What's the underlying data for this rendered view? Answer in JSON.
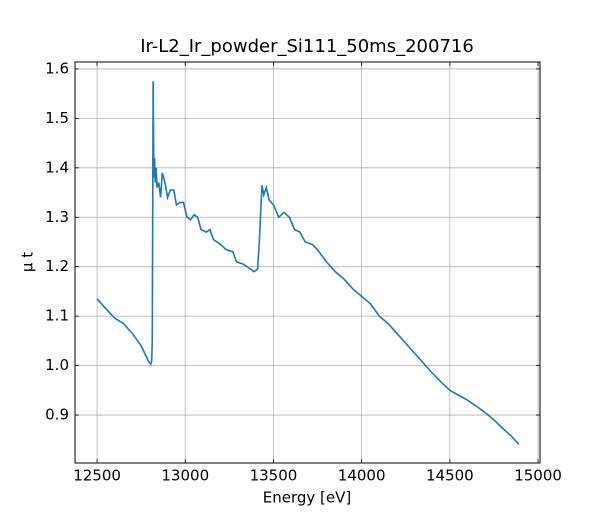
{
  "chart_data": {
    "type": "line",
    "title": "Ir-L2_Ir_powder_Si111_50ms_200716",
    "xlabel": "Energy [eV]",
    "ylabel": "μ t",
    "x": [
      12500,
      12550,
      12600,
      12650,
      12700,
      12750,
      12790,
      12805,
      12810,
      12813,
      12815,
      12818,
      12822,
      12826,
      12830,
      12835,
      12840,
      12850,
      12860,
      12870,
      12885,
      12900,
      12915,
      12935,
      12950,
      12970,
      12990,
      13010,
      13030,
      13050,
      13070,
      13090,
      13120,
      13140,
      13160,
      13200,
      13230,
      13270,
      13290,
      13330,
      13370,
      13390,
      13410,
      13420,
      13435,
      13445,
      13460,
      13475,
      13500,
      13530,
      13560,
      13590,
      13620,
      13650,
      13680,
      13720,
      13750,
      13800,
      13850,
      13900,
      13950,
      14000,
      14050,
      14100,
      14150,
      14200,
      14250,
      14300,
      14350,
      14400,
      14450,
      14500,
      14550,
      14600,
      14650,
      14700,
      14750,
      14800,
      14850,
      14890
    ],
    "series": [
      {
        "name": "Ir-L2",
        "color": "#1f77b4",
        "values": [
          1.135,
          1.115,
          1.096,
          1.085,
          1.065,
          1.04,
          1.01,
          1.003,
          1.01,
          1.05,
          1.25,
          1.575,
          1.38,
          1.42,
          1.37,
          1.4,
          1.36,
          1.37,
          1.34,
          1.39,
          1.37,
          1.34,
          1.355,
          1.355,
          1.325,
          1.33,
          1.33,
          1.3,
          1.295,
          1.305,
          1.3,
          1.275,
          1.27,
          1.275,
          1.255,
          1.245,
          1.235,
          1.23,
          1.21,
          1.205,
          1.195,
          1.19,
          1.195,
          1.25,
          1.365,
          1.345,
          1.36,
          1.335,
          1.325,
          1.3,
          1.31,
          1.3,
          1.275,
          1.27,
          1.25,
          1.245,
          1.234,
          1.21,
          1.19,
          1.175,
          1.155,
          1.14,
          1.125,
          1.1,
          1.085,
          1.065,
          1.045,
          1.025,
          1.005,
          0.985,
          0.967,
          0.95,
          0.94,
          0.93,
          0.918,
          0.905,
          0.89,
          0.873,
          0.857,
          0.841
        ]
      }
    ],
    "xlim": [
      12375,
      15011
    ],
    "ylim": [
      0.803,
      1.614
    ],
    "xticks": [
      12500,
      13000,
      13500,
      14000,
      14500,
      15000
    ],
    "yticks": [
      0.9,
      {
        "value": 1.0,
        "label": "1.0"
      },
      1.1,
      1.2,
      1.3,
      1.4,
      1.5,
      1.6
    ],
    "grid": true
  }
}
